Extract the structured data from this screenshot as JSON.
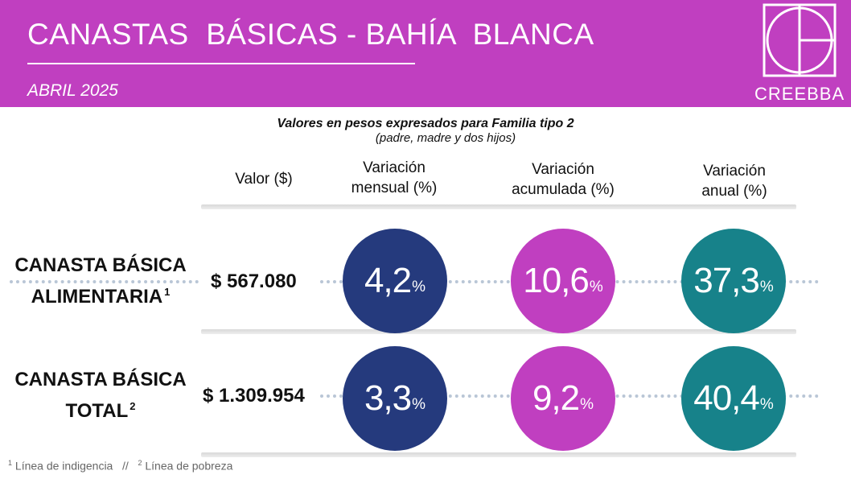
{
  "header": {
    "title": "CANASTAS  BÁSICAS - BAHÍA  BLANCA",
    "subtitle": "ABRIL 2025",
    "logo_text": "CREEBBA"
  },
  "caption": {
    "line1": "Valores en pesos expresados para Familia tipo 2",
    "line2": "(padre, madre y dos hijos)"
  },
  "columns": {
    "valor": "Valor ($)",
    "mensual": [
      "Variación",
      "mensual (%)"
    ],
    "acumulada": [
      "Variación",
      "acumulada (%)"
    ],
    "anual": [
      "Variación",
      "anual (%)"
    ]
  },
  "rows": [
    {
      "label": [
        "CANASTA BÁSICA",
        "ALIMENTARIA"
      ],
      "note": "1",
      "value": "$ 567.080",
      "mensual": "4,2",
      "acumulada": "10,6",
      "anual": "37,3"
    },
    {
      "label": [
        "CANASTA BÁSICA",
        "TOTAL"
      ],
      "note": "2",
      "value": "$ 1.309.954",
      "mensual": "3,3",
      "acumulada": "9,2",
      "anual": "40,4"
    }
  ],
  "percent_sign": "%",
  "footnote": {
    "n1": "1",
    "t1": " Línea de indigencia   //   ",
    "n2": "2",
    "t2": " Línea de pobreza"
  },
  "colors": {
    "header": "#c03fc0",
    "mensual": "#253a7d",
    "acumulada": "#c03fc0",
    "anual": "#17828a"
  },
  "icons": {
    "logo": "creebba-logo-icon"
  }
}
